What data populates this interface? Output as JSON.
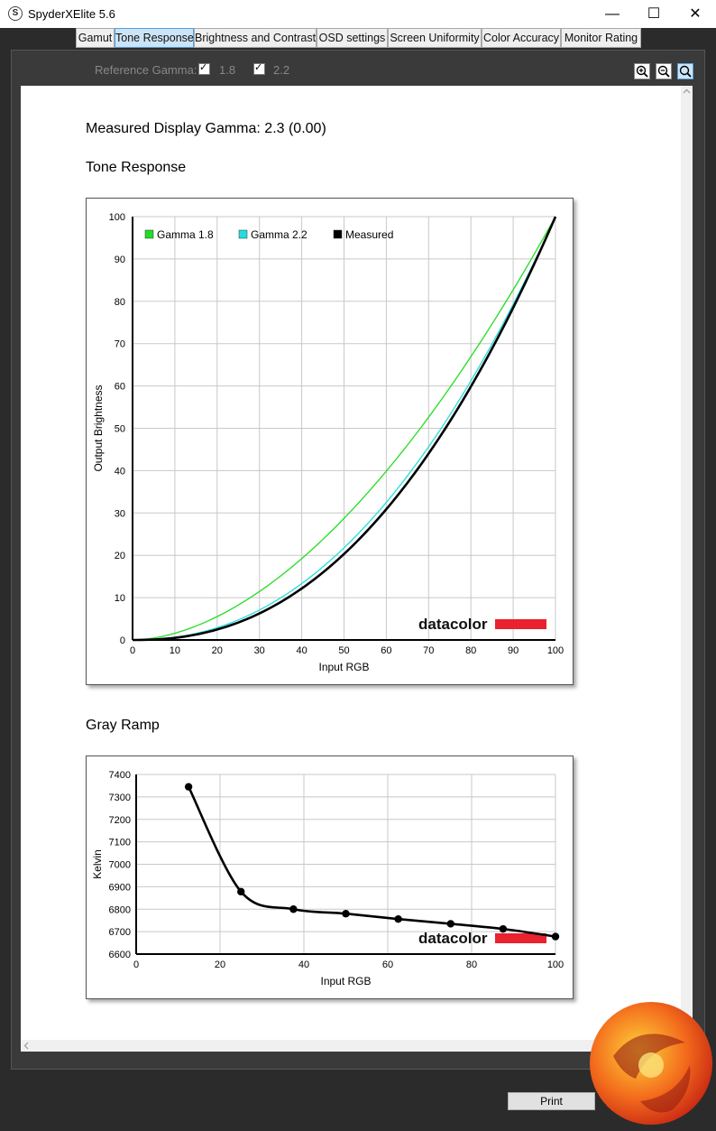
{
  "window": {
    "title": "SpyderXElite 5.6",
    "app_icon_letter": "S",
    "minimize": "—",
    "maximize": "☐",
    "close": "✕"
  },
  "tabs": [
    "Gamut",
    "Tone Response",
    "Brightness and Contrast",
    "OSD settings",
    "Screen Uniformity",
    "Color Accuracy",
    "Monitor Rating"
  ],
  "active_tab": "Tone Response",
  "reference_gamma": {
    "label": "Reference Gamma:",
    "options": [
      {
        "label": "1.8",
        "checked": true
      },
      {
        "label": "2.2",
        "checked": true
      }
    ]
  },
  "zoom_tools": [
    "zoom-in-icon",
    "zoom-out-icon",
    "zoom-fit-icon"
  ],
  "measured_gamma_text": "Measured Display Gamma: 2.3 (0.00)",
  "tone_response_heading": "Tone Response",
  "gray_ramp_heading": "Gray Ramp",
  "print_label": "Print",
  "watermark_text": "datacolor",
  "colors": {
    "gamma18": "#22dd22",
    "gamma22": "#22dddd",
    "measured": "#000000",
    "brand_red": "#e8222e",
    "active_tab": "#cce4f7"
  },
  "chart_data": [
    {
      "type": "line",
      "xlabel": "Input RGB",
      "ylabel": "Output Brightness",
      "xlim": [
        0,
        100
      ],
      "ylim": [
        0,
        100
      ],
      "xticks": [
        0,
        10,
        20,
        30,
        40,
        50,
        60,
        70,
        80,
        90,
        100
      ],
      "yticks": [
        0,
        10,
        20,
        30,
        40,
        50,
        60,
        70,
        80,
        90,
        100
      ],
      "grid": true,
      "legend": "top-left",
      "series": [
        {
          "name": "Gamma 1.8",
          "gamma": 1.8,
          "color": "#22dd22"
        },
        {
          "name": "Gamma 2.2",
          "gamma": 2.2,
          "color": "#22dddd"
        },
        {
          "name": "Measured",
          "gamma": 2.3,
          "color": "#000000"
        }
      ]
    },
    {
      "type": "line",
      "xlabel": "Input RGB",
      "ylabel": "Kelvin",
      "xlim": [
        0,
        100
      ],
      "ylim": [
        6600,
        7400
      ],
      "xticks": [
        0,
        20,
        40,
        60,
        80,
        100
      ],
      "yticks": [
        6600,
        6700,
        6800,
        6900,
        7000,
        7100,
        7200,
        7300,
        7400
      ],
      "grid": true,
      "x": [
        12.5,
        25,
        37.5,
        50,
        62.5,
        75,
        87.5,
        100
      ],
      "y": [
        7345,
        6878,
        6800,
        6780,
        6756,
        6735,
        6712,
        6678
      ]
    }
  ]
}
